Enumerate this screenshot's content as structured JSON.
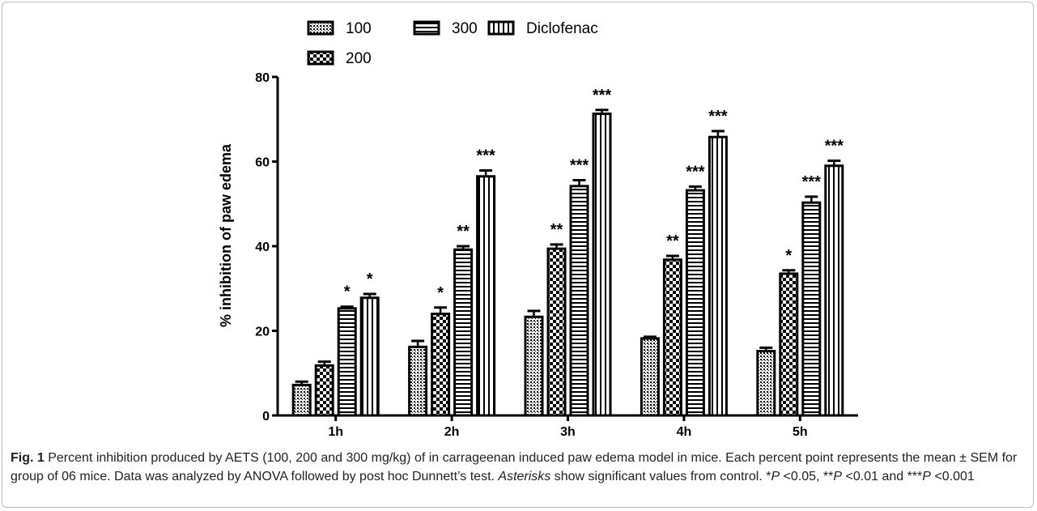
{
  "chart_data": {
    "type": "bar",
    "ylabel": "% inhibition of paw edema",
    "xlabel": "",
    "ylim": [
      0,
      80
    ],
    "yticks": [
      0,
      20,
      40,
      60,
      80
    ],
    "categories": [
      "1h",
      "2h",
      "3h",
      "4h",
      "5h"
    ],
    "legend_placement": "top",
    "grid": false,
    "series": [
      {
        "name": "100",
        "pattern": "dots",
        "values": [
          7.2,
          16.2,
          23.3,
          18.2,
          15.2
        ],
        "errors": [
          0.8,
          1.4,
          1.4,
          0.4,
          0.8
        ],
        "significance": [
          "",
          "",
          "",
          "",
          ""
        ]
      },
      {
        "name": "200",
        "pattern": "checker",
        "values": [
          11.8,
          24.0,
          39.4,
          36.8,
          33.5
        ],
        "errors": [
          0.9,
          1.5,
          1.0,
          0.9,
          0.8
        ],
        "significance": [
          "",
          "*",
          "**",
          "**",
          "*"
        ]
      },
      {
        "name": "300",
        "pattern": "horizontal-stripes",
        "values": [
          25.3,
          39.2,
          54.2,
          53.2,
          50.3
        ],
        "errors": [
          0.4,
          0.8,
          1.4,
          0.9,
          1.4
        ],
        "significance": [
          "*",
          "**",
          "***",
          "***",
          "***"
        ]
      },
      {
        "name": "Diclofenac",
        "pattern": "vertical-stripes",
        "values": [
          27.8,
          56.5,
          71.3,
          65.8,
          59.0
        ],
        "errors": [
          0.9,
          1.4,
          0.9,
          1.4,
          1.2
        ],
        "significance": [
          "*",
          "***",
          "***",
          "***",
          "***"
        ]
      }
    ]
  },
  "caption": {
    "label": "Fig. 1",
    "text_1": " Percent inhibition produced by AETS (100, 200 and 300 mg/kg) of in carrageenan induced paw edema model in mice. Each percent point represents the mean ± SEM for group of 06 mice. Data was analyzed by ANOVA followed by post hoc Dunnett’s test. ",
    "asterisks_word": "Asterisks",
    "text_2": " show significant values from control. *",
    "p1": "P",
    "text_3": " <0.05, **",
    "p2": "P",
    "text_4": " <0.01 and ***",
    "p3": "P",
    "text_5": " <0.001"
  }
}
